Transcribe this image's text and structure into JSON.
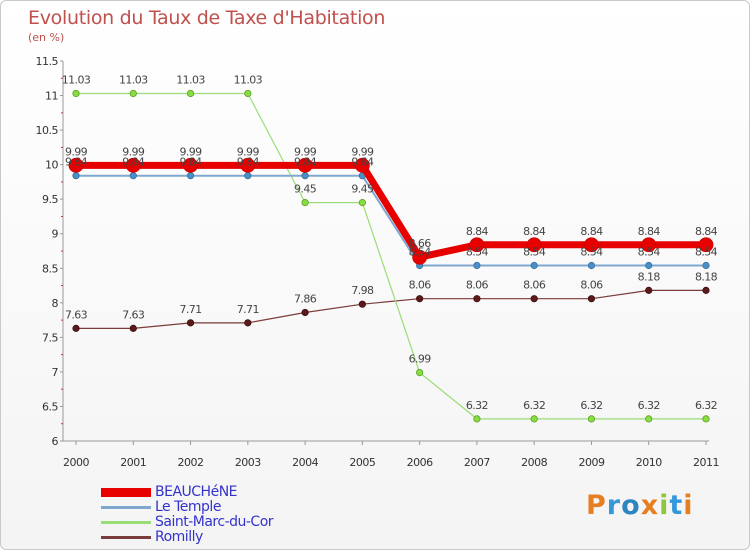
{
  "title": "Evolution du Taux de Taxe d'Habitation",
  "unit": "(en %)",
  "logo": {
    "text": "Proxiti",
    "letters": [
      "P",
      "r",
      "o",
      "x",
      "i",
      "t",
      "i"
    ],
    "colors": [
      "#e67e22",
      "#3498db",
      "#2e86c1",
      "#e67e22",
      "#8dc63f",
      "#3498db",
      "#e67e22"
    ]
  },
  "chart_data": {
    "type": "line",
    "x": [
      "2000",
      "2001",
      "2002",
      "2003",
      "2004",
      "2005",
      "2006",
      "2007",
      "2008",
      "2009",
      "2010",
      "2011"
    ],
    "ylim": [
      6,
      11.5
    ],
    "yticks": [
      "6",
      "6.5",
      "7",
      "7.5",
      "8",
      "8.5",
      "9",
      "9.5",
      "10",
      "10.5",
      "11",
      "11.5"
    ],
    "grid": false,
    "legend_position": "bottom-left",
    "series": [
      {
        "name": "BEAUCHéNE",
        "color": "#e60000",
        "values": [
          9.99,
          9.99,
          9.99,
          9.99,
          9.99,
          9.99,
          8.66,
          8.84,
          8.84,
          8.84,
          8.84,
          8.84
        ],
        "labels": [
          "9.99",
          "9.99",
          "9.99",
          "9.99",
          "9.99",
          "9.99",
          "8.66",
          "8.84",
          "8.84",
          "8.84",
          "8.84",
          "8.84"
        ]
      },
      {
        "name": "Le Temple",
        "color": "#7fa8d0",
        "values": [
          9.84,
          9.84,
          9.84,
          9.84,
          9.84,
          9.84,
          8.54,
          8.54,
          8.54,
          8.54,
          8.54,
          8.54
        ],
        "labels": [
          "9.84",
          "9.84",
          "9.84",
          "9.84",
          "9.84",
          "9.84",
          "8.54",
          "8.54",
          "8.54",
          "8.54",
          "8.54",
          "8.54"
        ]
      },
      {
        "name": "Saint-Marc-du-Cor",
        "color": "#99dd77",
        "values": [
          11.03,
          11.03,
          11.03,
          11.03,
          9.45,
          9.45,
          6.99,
          6.32,
          6.32,
          6.32,
          6.32,
          6.32
        ],
        "labels": [
          "11.03",
          "11.03",
          "11.03",
          "11.03",
          "9.45",
          "9.45",
          "6.99",
          "6.32",
          "6.32",
          "6.32",
          "6.32",
          "6.32"
        ]
      },
      {
        "name": "Romilly",
        "color": "#7a3b3b",
        "values": [
          7.63,
          7.63,
          7.71,
          7.71,
          7.86,
          7.98,
          8.06,
          8.06,
          8.06,
          8.06,
          8.18,
          8.18
        ],
        "labels": [
          "7.63",
          "7.63",
          "7.71",
          "7.71",
          "7.86",
          "7.98",
          "8.06",
          "8.06",
          "8.06",
          "8.06",
          "8.18",
          "8.18"
        ]
      }
    ]
  }
}
